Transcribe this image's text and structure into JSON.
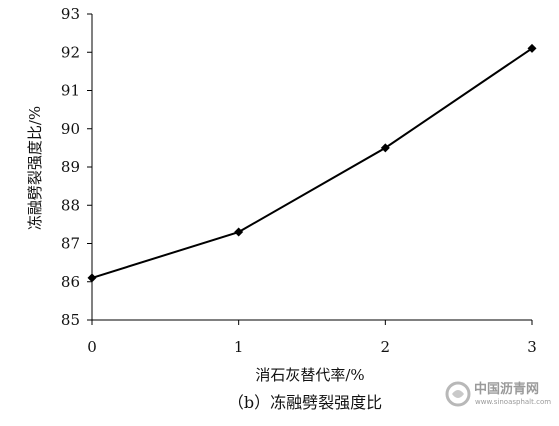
{
  "chart_data": {
    "type": "line",
    "x": [
      0,
      1,
      2,
      3
    ],
    "series": [
      {
        "values": [
          86.1,
          87.3,
          89.5,
          92.1
        ]
      }
    ],
    "xlabel": "消石灰替代率/%",
    "ylabel": "冻融劈裂强度比/%",
    "xlim": [
      0,
      3
    ],
    "ylim": [
      85,
      93
    ],
    "xticks": [
      "0",
      "1",
      "2",
      "3"
    ],
    "yticks": [
      "85",
      "86",
      "87",
      "88",
      "89",
      "90",
      "91",
      "92",
      "93"
    ],
    "grid": false,
    "line_color": "#000000",
    "marker": "diamond"
  },
  "caption": "（b）冻融劈裂强度比",
  "watermark": {
    "name": "中国沥青网",
    "url": "www.sinoasphalt.com"
  }
}
